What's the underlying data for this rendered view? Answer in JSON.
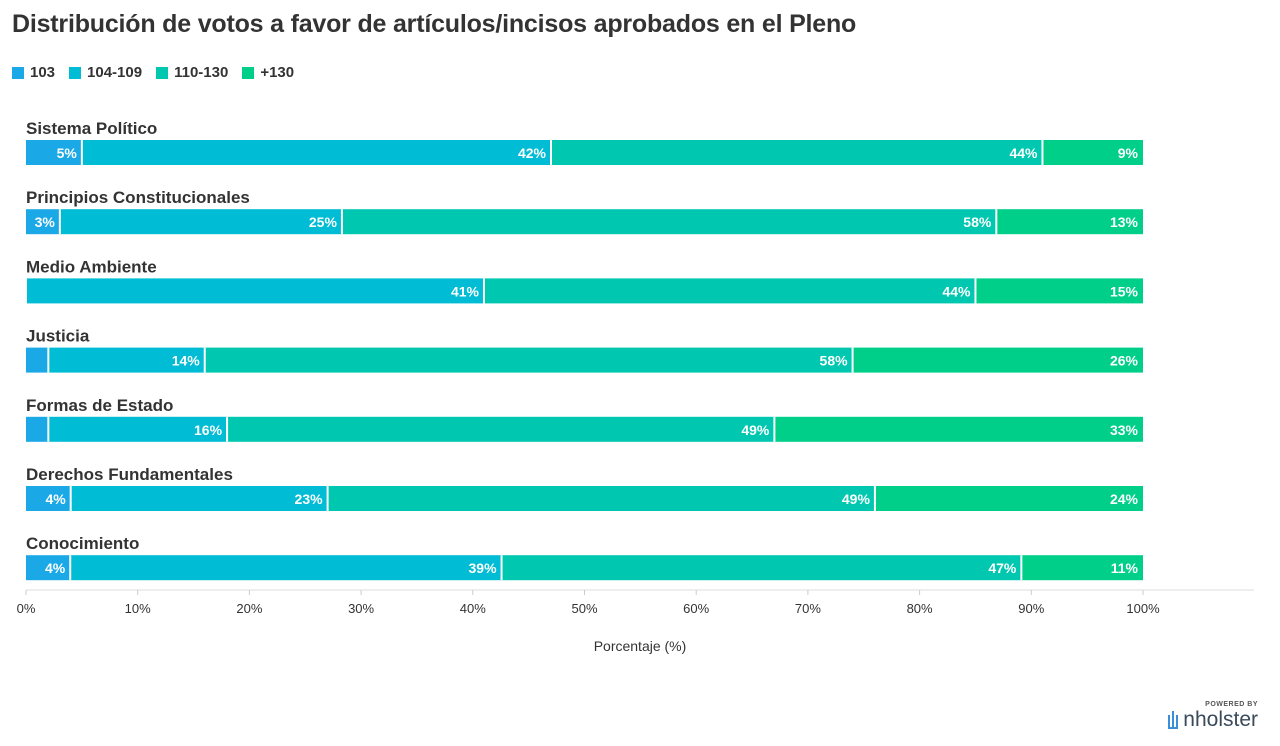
{
  "chart_data": {
    "type": "bar",
    "orientation": "horizontal",
    "stacked": true,
    "title": "Distribución de votos a favor de artículos/incisos aprobados en el Pleno",
    "xlabel": "Porcentaje (%)",
    "xlim": [
      0,
      100
    ],
    "x_ticks": [
      "0%",
      "10%",
      "20%",
      "30%",
      "40%",
      "50%",
      "60%",
      "70%",
      "80%",
      "90%",
      "100%"
    ],
    "legend_position": "top-left",
    "categories": [
      "Sistema Político",
      "Principios Constitucionales",
      "Medio Ambiente",
      "Justicia",
      "Formas de Estado",
      "Derechos Fundamentales",
      "Conocimiento"
    ],
    "series": [
      {
        "name": "103",
        "color": "#1aa9e6",
        "values": [
          5,
          3,
          0,
          2,
          2,
          4,
          4
        ],
        "labels": [
          "5%",
          "3%",
          "",
          "",
          "",
          "4%",
          "4%"
        ]
      },
      {
        "name": "104-109",
        "color": "#00bcd4",
        "values": [
          42,
          25,
          41,
          14,
          16,
          23,
          39
        ],
        "labels": [
          "42%",
          "25%",
          "41%",
          "14%",
          "16%",
          "23%",
          "39%"
        ]
      },
      {
        "name": "110-130",
        "color": "#00c8b0",
        "values": [
          44,
          58,
          44,
          58,
          49,
          49,
          47
        ],
        "labels": [
          "44%",
          "58%",
          "44%",
          "58%",
          "49%",
          "49%",
          "47%"
        ]
      },
      {
        "name": "+130",
        "color": "#00cf8a",
        "values": [
          9,
          13,
          15,
          26,
          33,
          24,
          11
        ],
        "labels": [
          "9%",
          "13%",
          "15%",
          "26%",
          "33%",
          "24%",
          "11%"
        ]
      }
    ]
  },
  "footer": {
    "powered_by": "POWERED BY",
    "brand": "nholster"
  }
}
